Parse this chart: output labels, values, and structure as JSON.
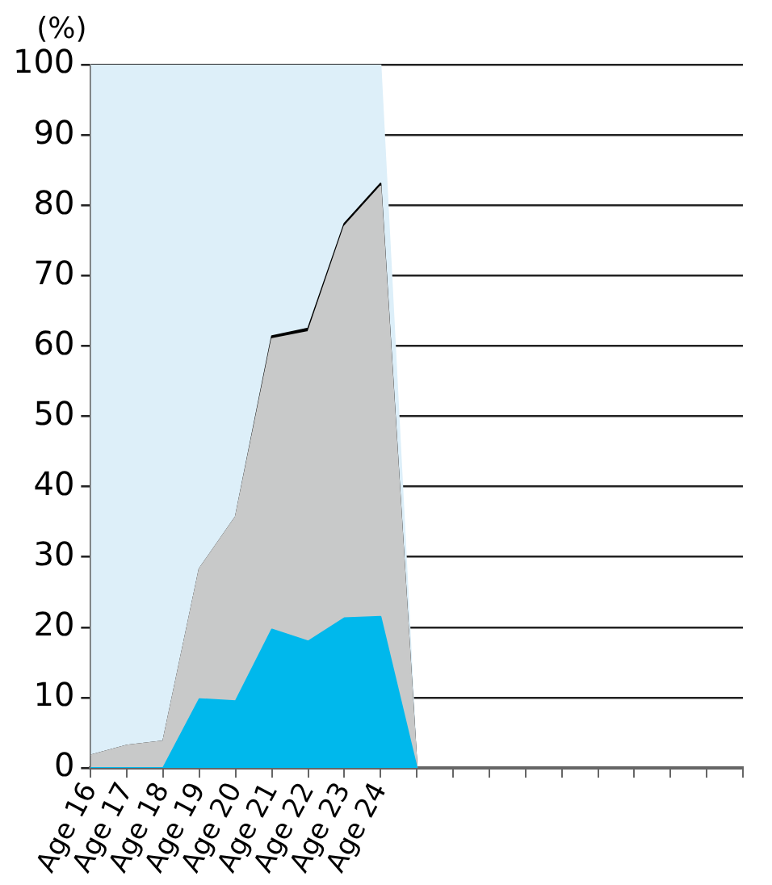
{
  "chart_data": {
    "type": "area",
    "stacked": true,
    "ylabel": "(%)",
    "categories": [
      "Age 16",
      "Age 17",
      "Age 18",
      "Age 19",
      "Age 20",
      "Age 21",
      "Age 22",
      "Age 23",
      "Age 24",
      null,
      null,
      null,
      null,
      null,
      null,
      null,
      null,
      null,
      null
    ],
    "series": [
      {
        "color": "#00b8ec",
        "values": [
          0,
          0,
          0,
          9.8,
          9.5,
          19.7,
          18.0,
          21.3,
          21.5,
          0,
          null,
          null,
          null,
          null,
          null,
          null,
          null,
          null,
          null
        ]
      },
      {
        "color": "#c8c9c9",
        "values": [
          1.8,
          3.2,
          3.8,
          18.5,
          26.2,
          41.3,
          44.0,
          55.7,
          61.2,
          0,
          null,
          null,
          null,
          null,
          null,
          null,
          null,
          null,
          null
        ]
      },
      {
        "color": "#000000",
        "values": [
          0,
          0,
          0,
          0,
          0,
          0.4,
          0.5,
          0.4,
          0.4,
          0,
          null,
          null,
          null,
          null,
          null,
          null,
          null,
          null,
          null
        ]
      },
      {
        "color": "#ddeff9",
        "values": [
          98.2,
          96.8,
          96.2,
          71.7,
          64.3,
          38.6,
          37.5,
          22.6,
          16.9,
          0,
          null,
          null,
          null,
          null,
          null,
          null,
          null,
          null,
          null
        ]
      }
    ],
    "ylim": [
      0,
      100
    ],
    "yticks": [
      0,
      10,
      20,
      30,
      40,
      50,
      60,
      70,
      80,
      90,
      100
    ],
    "grid": "y",
    "legend": false
  }
}
